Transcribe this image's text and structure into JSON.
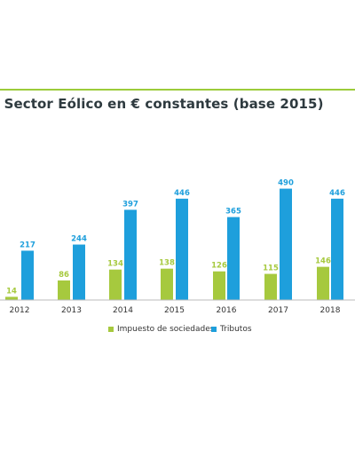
{
  "title": "l Sector Eólico en € constantes (base 2015)",
  "colors": {
    "rule": "#9ccc3a",
    "series_green": "#a6c93e",
    "series_blue": "#1e9fdc",
    "label_green": "#a6c93e",
    "label_blue": "#1e9fdc",
    "axis_text": "#333333"
  },
  "chart_data": {
    "type": "bar",
    "title": "l Sector Eólico en € constantes (base 2015)",
    "categories": [
      "2012",
      "2013",
      "2014",
      "2015",
      "2016",
      "2017",
      "2018"
    ],
    "series": [
      {
        "name": "Impuesto de sociedades",
        "values": [
          14,
          86,
          134,
          138,
          126,
          115,
          146
        ]
      },
      {
        "name": "Tributos",
        "values": [
          217,
          244,
          397,
          446,
          365,
          490,
          446
        ]
      }
    ],
    "ylim": [
      0,
      500
    ],
    "grid": false,
    "legend": "bottom"
  },
  "legend": [
    "Impuesto de sociedades",
    "Tributos"
  ]
}
